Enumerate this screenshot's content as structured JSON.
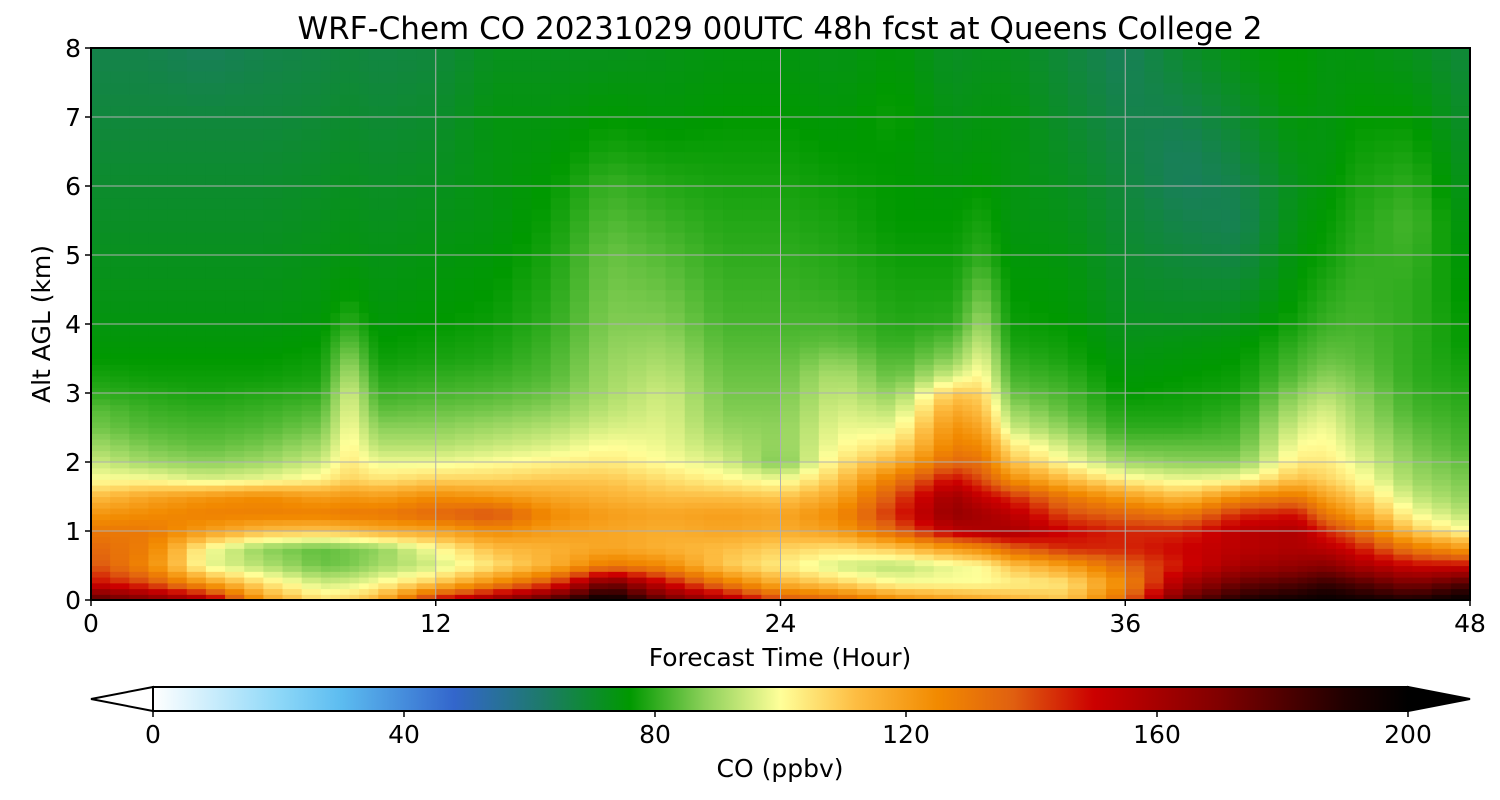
{
  "chart_data": {
    "type": "heatmap",
    "title": "WRF-Chem CO  20231029 00UTC 48h fcst at Queens College 2",
    "xlabel": "Forecast Time (Hour)",
    "ylabel": "Alt AGL (km)",
    "xlim": [
      0,
      48
    ],
    "ylim": [
      0,
      8
    ],
    "xticks": [
      0,
      12,
      24,
      36,
      48
    ],
    "yticks": [
      0,
      1,
      2,
      3,
      4,
      5,
      6,
      7,
      8
    ],
    "grid": true,
    "colorbar": {
      "label": "CO  (ppbv)",
      "min": 0,
      "max": 200,
      "ticks": [
        0,
        40,
        80,
        120,
        160,
        200
      ],
      "extend": "both",
      "orientation": "horizontal",
      "stops": [
        {
          "value": 0,
          "color": "#ffffff"
        },
        {
          "value": 20,
          "color": "#8ed8f8"
        },
        {
          "value": 30,
          "color": "#5cbcf0"
        },
        {
          "value": 48,
          "color": "#3366cc"
        },
        {
          "value": 62,
          "color": "#1d7a6a"
        },
        {
          "value": 76,
          "color": "#009900"
        },
        {
          "value": 88,
          "color": "#8dd15a"
        },
        {
          "value": 100,
          "color": "#ffff99"
        },
        {
          "value": 112,
          "color": "#fdbd42"
        },
        {
          "value": 125,
          "color": "#f28a00"
        },
        {
          "value": 137,
          "color": "#e06010"
        },
        {
          "value": 150,
          "color": "#cc0000"
        },
        {
          "value": 170,
          "color": "#800000"
        },
        {
          "value": 190,
          "color": "#200000"
        },
        {
          "value": 200,
          "color": "#000000"
        }
      ]
    },
    "x_hours": [
      0,
      2,
      4,
      6,
      8,
      9,
      10,
      12,
      14,
      16,
      18,
      20,
      22,
      24,
      26,
      28,
      30,
      31,
      32,
      34,
      36,
      38,
      40,
      42,
      43,
      44,
      46,
      48
    ],
    "y_km": [
      0,
      0.25,
      0.5,
      0.75,
      1,
      1.25,
      1.5,
      1.75,
      2,
      2.25,
      2.5,
      2.75,
      3,
      3.25,
      3.5,
      3.75,
      4,
      4.5,
      5,
      5.5,
      6,
      6.5,
      7,
      7.5,
      8
    ],
    "co_ppbv_profiles": [
      [
        180,
        150,
        140,
        135,
        130,
        122,
        112,
        100,
        95,
        90,
        86,
        84,
        80,
        78,
        76,
        75,
        74,
        73,
        72,
        71,
        70,
        69,
        68,
        67,
        66
      ],
      [
        170,
        140,
        125,
        128,
        130,
        125,
        118,
        100,
        90,
        86,
        83,
        81,
        79,
        77,
        76,
        75,
        74,
        73,
        72,
        71,
        70,
        69,
        68,
        67,
        66
      ],
      [
        160,
        120,
        98,
        100,
        120,
        128,
        122,
        96,
        88,
        84,
        82,
        80,
        78,
        77,
        76,
        75,
        74,
        73,
        72,
        71,
        70,
        69,
        68,
        66,
        64
      ],
      [
        120,
        105,
        92,
        88,
        112,
        128,
        125,
        98,
        90,
        86,
        83,
        81,
        79,
        77,
        76,
        75,
        74,
        73,
        72,
        71,
        70,
        69,
        68,
        67,
        66
      ],
      [
        105,
        95,
        85,
        84,
        110,
        128,
        120,
        102,
        95,
        90,
        86,
        83,
        80,
        78,
        77,
        76,
        75,
        74,
        73,
        72,
        71,
        70,
        69,
        68,
        67
      ],
      [
        108,
        96,
        86,
        86,
        112,
        130,
        122,
        108,
        104,
        102,
        100,
        98,
        96,
        92,
        88,
        84,
        80,
        76,
        74,
        73,
        72,
        71,
        70,
        69,
        68
      ],
      [
        115,
        100,
        90,
        88,
        115,
        130,
        120,
        105,
        98,
        92,
        88,
        84,
        81,
        79,
        77,
        76,
        75,
        74,
        73,
        72,
        71,
        70,
        69,
        68,
        67
      ],
      [
        150,
        110,
        95,
        100,
        118,
        135,
        125,
        108,
        98,
        92,
        88,
        85,
        82,
        80,
        78,
        77,
        76,
        75,
        74,
        73,
        72,
        71,
        70,
        69,
        68
      ],
      [
        165,
        125,
        105,
        112,
        125,
        140,
        122,
        108,
        100,
        94,
        90,
        86,
        83,
        81,
        79,
        78,
        77,
        76,
        75,
        74,
        74,
        74,
        74,
        73,
        72
      ],
      [
        180,
        140,
        115,
        115,
        120,
        125,
        118,
        110,
        102,
        96,
        92,
        88,
        85,
        83,
        82,
        81,
        80,
        79,
        78,
        77,
        76,
        75,
        74,
        73,
        72
      ],
      [
        200,
        175,
        130,
        118,
        118,
        120,
        115,
        110,
        104,
        100,
        96,
        93,
        91,
        90,
        89,
        88,
        87,
        86,
        85,
        83,
        81,
        78,
        76,
        74,
        72
      ],
      [
        175,
        150,
        125,
        115,
        116,
        118,
        112,
        106,
        100,
        98,
        97,
        96,
        95,
        93,
        91,
        89,
        87,
        85,
        83,
        81,
        79,
        77,
        75,
        74,
        73
      ],
      [
        160,
        130,
        110,
        112,
        118,
        120,
        112,
        102,
        96,
        92,
        89,
        87,
        86,
        85,
        84,
        83,
        82,
        81,
        80,
        79,
        78,
        77,
        76,
        75,
        74
      ],
      [
        140,
        115,
        103,
        108,
        116,
        118,
        110,
        98,
        86,
        88,
        88,
        87,
        86,
        85,
        84,
        83,
        82,
        81,
        80,
        79,
        78,
        77,
        76,
        75,
        74
      ],
      [
        135,
        108,
        95,
        105,
        120,
        125,
        118,
        110,
        104,
        100,
        98,
        96,
        94,
        92,
        88,
        84,
        82,
        80,
        79,
        78,
        77,
        76,
        75,
        74,
        73
      ],
      [
        125,
        100,
        92,
        110,
        135,
        145,
        140,
        130,
        115,
        105,
        98,
        93,
        88,
        84,
        82,
        80,
        79,
        78,
        77,
        76,
        76,
        76,
        77,
        76,
        75
      ],
      [
        120,
        100,
        98,
        120,
        155,
        165,
        162,
        150,
        135,
        128,
        124,
        118,
        110,
        96,
        88,
        84,
        80,
        78,
        77,
        76,
        75,
        74,
        73,
        72,
        71
      ],
      [
        118,
        100,
        100,
        125,
        158,
        160,
        152,
        140,
        132,
        125,
        118,
        112,
        108,
        102,
        98,
        94,
        90,
        85,
        80,
        78,
        76,
        75,
        74,
        73,
        72
      ],
      [
        115,
        102,
        110,
        135,
        160,
        155,
        145,
        125,
        112,
        104,
        95,
        90,
        85,
        82,
        80,
        78,
        77,
        76,
        75,
        74,
        74,
        74,
        74,
        73,
        72
      ],
      [
        110,
        105,
        120,
        145,
        150,
        140,
        130,
        112,
        100,
        94,
        88,
        84,
        82,
        80,
        78,
        77,
        76,
        75,
        74,
        73,
        72,
        71,
        70,
        69,
        68
      ],
      [
        135,
        125,
        135,
        145,
        145,
        135,
        120,
        102,
        90,
        84,
        80,
        78,
        76,
        75,
        74,
        73,
        72,
        71,
        70,
        69,
        68,
        67,
        66,
        65,
        64
      ],
      [
        175,
        160,
        148,
        150,
        145,
        130,
        112,
        98,
        88,
        84,
        80,
        78,
        77,
        76,
        75,
        74,
        72,
        70,
        68,
        66,
        64,
        64,
        66,
        68,
        70
      ],
      [
        190,
        175,
        160,
        155,
        155,
        145,
        125,
        100,
        88,
        84,
        82,
        80,
        78,
        77,
        76,
        75,
        73,
        70,
        67,
        65,
        66,
        68,
        70,
        72,
        74
      ],
      [
        195,
        180,
        165,
        158,
        158,
        148,
        130,
        112,
        104,
        100,
        96,
        92,
        88,
        84,
        82,
        80,
        78,
        76,
        75,
        74,
        73,
        74,
        75,
        76,
        76
      ],
      [
        198,
        185,
        168,
        155,
        145,
        130,
        118,
        108,
        104,
        101,
        99,
        96,
        92,
        88,
        85,
        83,
        81,
        79,
        77,
        76,
        75,
        74,
        74,
        74,
        74
      ],
      [
        195,
        180,
        160,
        148,
        135,
        120,
        110,
        102,
        98,
        95,
        92,
        90,
        88,
        86,
        84,
        83,
        82,
        81,
        80,
        79,
        78,
        77,
        76,
        75,
        74
      ],
      [
        190,
        170,
        150,
        130,
        110,
        100,
        94,
        90,
        88,
        86,
        84,
        82,
        81,
        80,
        80,
        80,
        80,
        80,
        81,
        82,
        80,
        78,
        76,
        74,
        72
      ],
      [
        200,
        180,
        150,
        120,
        100,
        92,
        88,
        86,
        84,
        82,
        81,
        80,
        79,
        78,
        77,
        76,
        76,
        75,
        74,
        73,
        72,
        71,
        70,
        69,
        68
      ]
    ]
  }
}
